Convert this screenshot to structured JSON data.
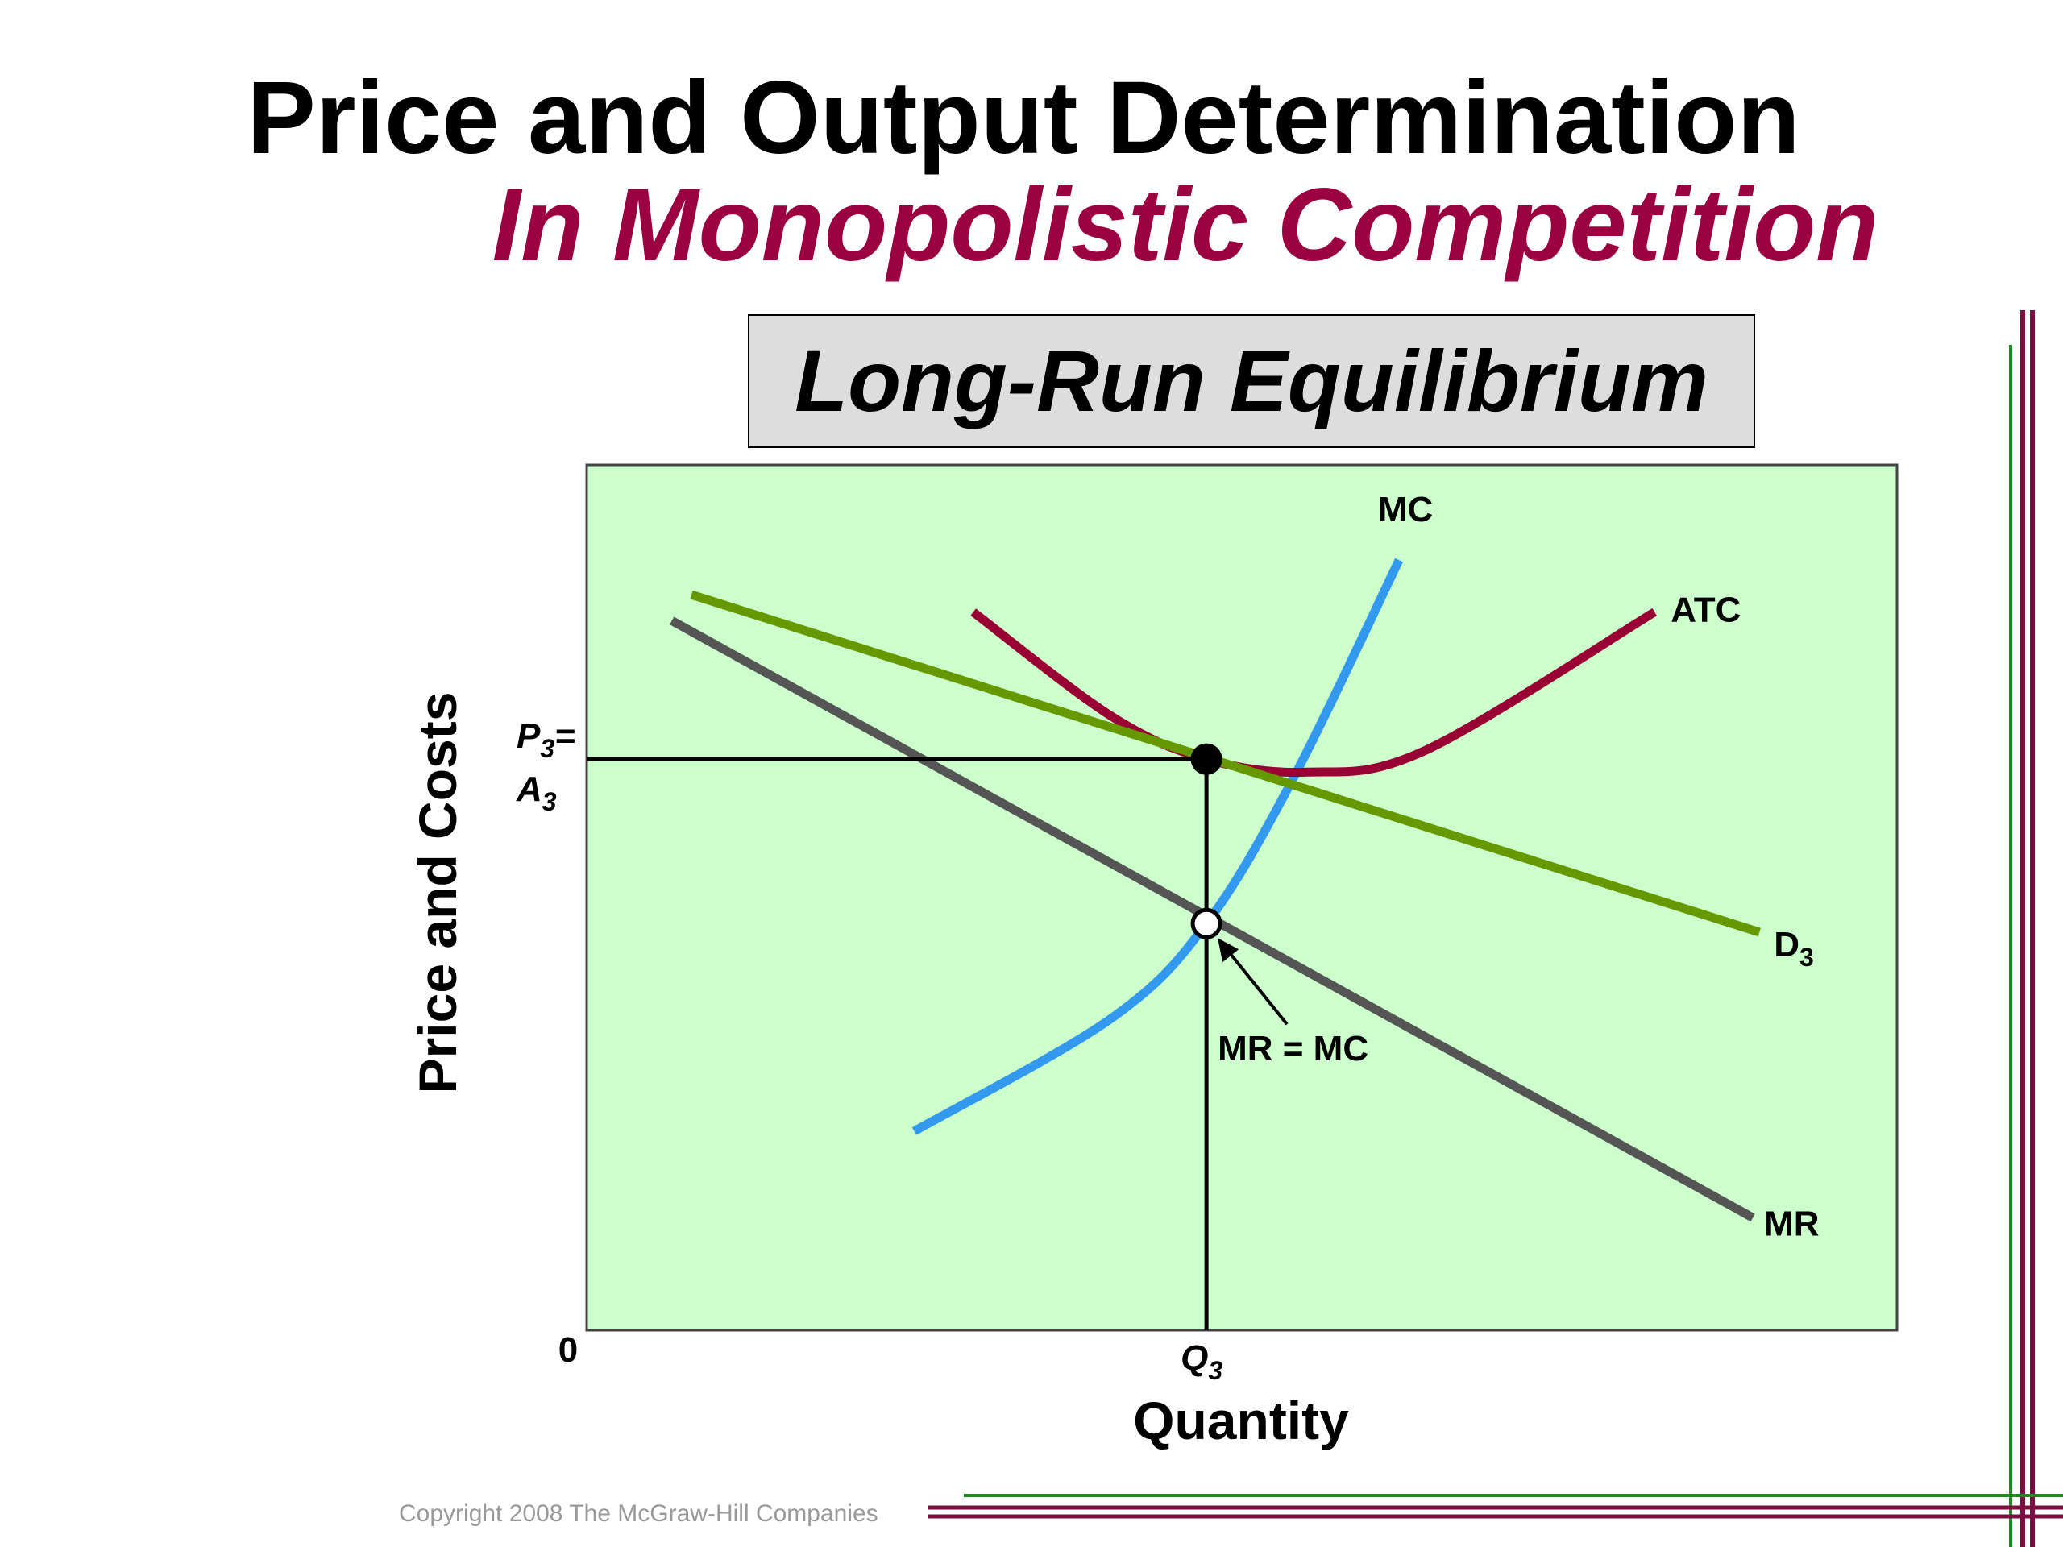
{
  "slide": {
    "title_line1": "Price and Output Determination",
    "title_line2": "In Monopolistic Competition",
    "box_label": "Long-Run Equilibrium",
    "copyright": "Copyright 2008 The McGraw-Hill Companies"
  },
  "colors": {
    "title2": "#9B0040",
    "plot_bg": "#CCFFCC",
    "box_bg": "#DDDDDD",
    "mc": "#3399EE",
    "atc": "#990033",
    "demand": "#669900",
    "mr": "#555555",
    "rule_green": "#228822",
    "rule_maroon": "#7A1040"
  },
  "chart_data": {
    "type": "line",
    "title": "Long-Run Equilibrium",
    "xlabel": "Quantity",
    "ylabel": "Price and Costs",
    "origin_label": "0",
    "xlim": [
      0,
      10
    ],
    "ylim": [
      0,
      10
    ],
    "grid": false,
    "x_tick": {
      "label": "Q",
      "sub": "3",
      "value": 4.73
    },
    "y_tick": {
      "label": "P",
      "sub": "3",
      "eq": "=",
      "label2": "A",
      "sub2": "3",
      "value": 6.6
    },
    "series": [
      {
        "name": "MC",
        "label": "MC",
        "points": [
          [
            2.5,
            2.3
          ],
          [
            4.0,
            3.6
          ],
          [
            4.73,
            4.7
          ],
          [
            5.4,
            6.4
          ],
          [
            6.2,
            8.9
          ]
        ]
      },
      {
        "name": "ATC",
        "label": "ATC",
        "points": [
          [
            2.95,
            8.3
          ],
          [
            4.0,
            7.1
          ],
          [
            4.73,
            6.6
          ],
          [
            5.5,
            6.45
          ],
          [
            6.4,
            6.7
          ],
          [
            8.15,
            8.3
          ]
        ]
      },
      {
        "name": "D3",
        "label": "D",
        "sub": "3",
        "points": [
          [
            0.8,
            8.5
          ],
          [
            4.73,
            6.6
          ],
          [
            8.95,
            4.6
          ]
        ]
      },
      {
        "name": "MR",
        "label": "MR",
        "points": [
          [
            0.65,
            8.2
          ],
          [
            4.73,
            4.7
          ],
          [
            8.9,
            1.3
          ]
        ]
      }
    ],
    "points": [
      {
        "name": "equilibrium-price",
        "x": 4.73,
        "y": 6.6,
        "fill": "filled"
      },
      {
        "name": "mr-equals-mc",
        "x": 4.73,
        "y": 4.7,
        "fill": "open"
      }
    ],
    "annotation": {
      "text": "MR = MC"
    }
  }
}
